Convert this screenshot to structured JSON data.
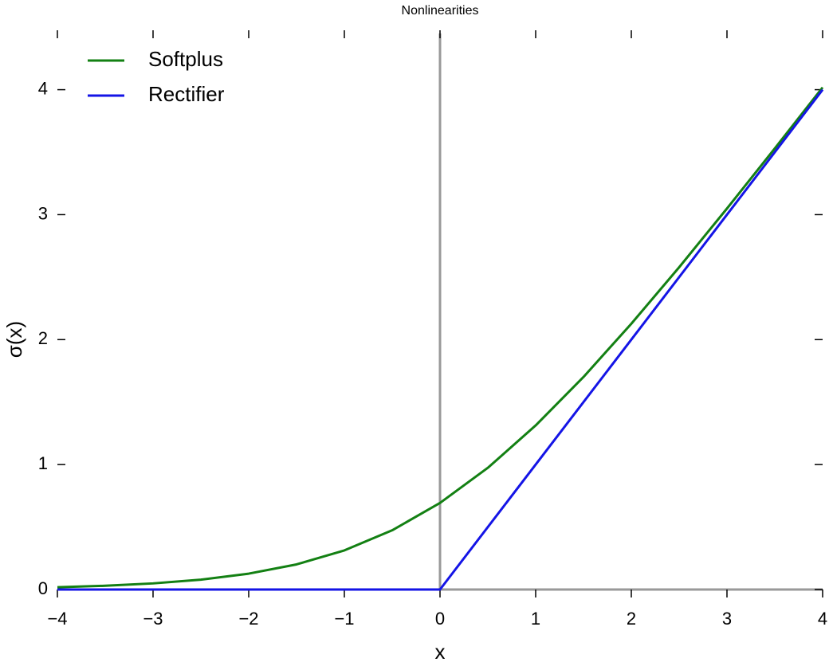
{
  "chart_data": {
    "type": "line",
    "title": "Nonlinearities",
    "x_label": "x",
    "y_label": "σ(x)",
    "series": [
      {
        "name": "Softplus",
        "color": "#138013",
        "x": [
          -4,
          -3.5,
          -3,
          -2.5,
          -2,
          -1.5,
          -1,
          -0.5,
          0,
          0.5,
          1,
          1.5,
          2,
          2.5,
          3,
          3.5,
          4
        ],
        "values": [
          0.018,
          0.03,
          0.049,
          0.079,
          0.127,
          0.201,
          0.313,
          0.474,
          0.693,
          0.974,
          1.313,
          1.701,
          2.127,
          2.579,
          3.049,
          3.53,
          4.018
        ]
      },
      {
        "name": "Rectifier",
        "color": "#1414e6",
        "x": [
          -4,
          0,
          4
        ],
        "values": [
          0,
          0,
          4
        ]
      }
    ],
    "xlim": [
      -4,
      4
    ],
    "ylim": [
      0,
      4.45
    ],
    "xticks": [
      {
        "value": -4,
        "label": "−4"
      },
      {
        "value": -3,
        "label": "−3"
      },
      {
        "value": -2,
        "label": "−2"
      },
      {
        "value": -1,
        "label": "−1"
      },
      0,
      1,
      2,
      3,
      4
    ],
    "yticks": [
      0,
      1,
      2,
      3,
      4
    ],
    "legend": "upper left"
  }
}
